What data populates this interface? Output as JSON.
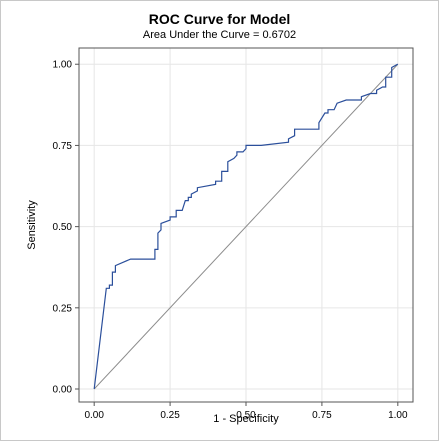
{
  "chart_data": {
    "type": "line",
    "title": "ROC Curve for Model",
    "subtitle": "Area Under the Curve = 0.6702",
    "xlabel": "1 - Specificity",
    "ylabel": "Sensitivity",
    "xlim": [
      -0.05,
      1.05
    ],
    "ylim": [
      -0.04,
      1.05
    ],
    "xticks": [
      0.0,
      0.25,
      0.5,
      0.75,
      1.0
    ],
    "xtick_labels": [
      "0.00",
      "0.25",
      "0.50",
      "0.75",
      "1.00"
    ],
    "yticks": [
      0.0,
      0.25,
      0.5,
      0.75,
      1.0
    ],
    "ytick_labels": [
      "0.00",
      "0.25",
      "0.50",
      "0.75",
      "1.00"
    ],
    "grid": true,
    "colors": {
      "curve": "#2b4f9b",
      "reference": "#8c8c8c",
      "grid": "#e6e6e6",
      "axis": "#555555"
    },
    "reference_line": {
      "x": [
        0,
        1
      ],
      "y": [
        0,
        1
      ]
    },
    "series": [
      {
        "x": [
          0.0,
          0.04,
          0.05,
          0.05,
          0.06,
          0.06,
          0.07,
          0.07,
          0.12,
          0.2,
          0.2,
          0.21,
          0.21,
          0.22,
          0.22,
          0.25,
          0.25,
          0.27,
          0.27,
          0.29,
          0.3,
          0.31,
          0.31,
          0.32,
          0.32,
          0.34,
          0.34,
          0.4,
          0.4,
          0.42,
          0.42,
          0.44,
          0.44,
          0.46,
          0.47,
          0.47,
          0.49,
          0.5,
          0.5,
          0.55,
          0.64,
          0.64,
          0.66,
          0.66,
          0.74,
          0.74,
          0.76,
          0.77,
          0.77,
          0.79,
          0.8,
          0.83,
          0.88,
          0.88,
          0.91,
          0.93,
          0.93,
          0.95,
          0.96,
          0.96,
          0.98,
          0.98,
          1.0
        ],
        "y": [
          0.0,
          0.31,
          0.31,
          0.32,
          0.32,
          0.36,
          0.36,
          0.38,
          0.4,
          0.4,
          0.43,
          0.43,
          0.48,
          0.49,
          0.51,
          0.52,
          0.53,
          0.53,
          0.55,
          0.55,
          0.58,
          0.58,
          0.59,
          0.59,
          0.6,
          0.61,
          0.62,
          0.63,
          0.64,
          0.64,
          0.67,
          0.67,
          0.7,
          0.71,
          0.72,
          0.73,
          0.73,
          0.74,
          0.75,
          0.75,
          0.76,
          0.77,
          0.78,
          0.8,
          0.8,
          0.82,
          0.85,
          0.85,
          0.86,
          0.86,
          0.88,
          0.89,
          0.89,
          0.9,
          0.91,
          0.91,
          0.92,
          0.93,
          0.93,
          0.96,
          0.96,
          0.99,
          1.0
        ]
      }
    ]
  }
}
